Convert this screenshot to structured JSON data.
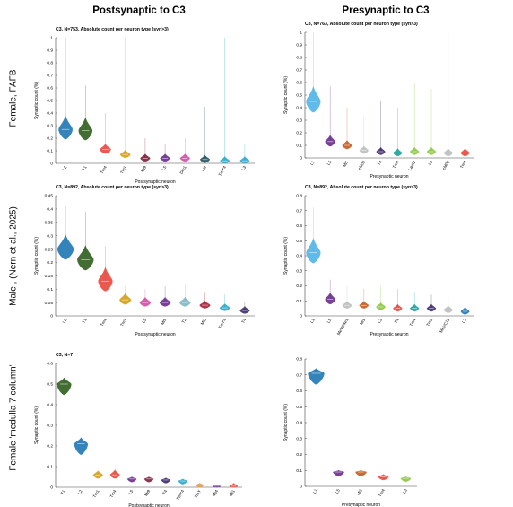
{
  "column_titles": [
    "Postsynaptic to C3",
    "Presynaptic to C3"
  ],
  "row_labels": [
    "Female, FAFB",
    "Male , (Nern et al., 2025)",
    "Female 'medulla 7 column'"
  ],
  "ylabel": "Synaptic count (%)",
  "chart_data": [
    {
      "type": "violin",
      "title": "C3, N=753, Absolute count per neuron type (syn>3)",
      "xlabel": "Postsynaptic neuron",
      "ylabel": "Synaptic count (%)",
      "ylim": [
        0,
        1
      ],
      "yticks": [
        0,
        0.1,
        0.2,
        0.3,
        0.4,
        0.5,
        0.6,
        0.7,
        0.8,
        0.9,
        1
      ],
      "categories": [
        "L2",
        "T1",
        "Tm4",
        "Tm1",
        "Mi9",
        "L5",
        "Dm1",
        "Lai",
        "TmY4",
        "L3"
      ],
      "medians": [
        0.27,
        0.26,
        0.11,
        0.07,
        0.04,
        0.04,
        0.04,
        0.03,
        0.02,
        0.02
      ],
      "max": [
        1,
        0.62,
        0.4,
        1,
        0.2,
        0.15,
        0.2,
        0.45,
        1,
        0.15
      ],
      "colors": [
        "#1f77b4",
        "#2e5e1e",
        "#e8483b",
        "#d4a017",
        "#7b1f3a",
        "#6a2d8c",
        "#d14fa3",
        "#1f4e5f",
        "#2aa7c9",
        "#2aa7c9"
      ]
    },
    {
      "type": "violin",
      "title": "C3, N=763, Absolute count per neuron type (syn>3)",
      "xlabel": "Presynaptic neuron",
      "ylabel": "Synaptic count (%)",
      "ylim": [
        0,
        1
      ],
      "yticks": [
        0,
        0.1,
        0.2,
        0.3,
        0.4,
        0.5,
        0.6,
        0.7,
        0.8,
        0.9,
        1
      ],
      "categories": [
        "L1",
        "L5",
        "Mi1",
        "cM05",
        "T4",
        "Tm4",
        "Lawf2",
        "L3",
        "cM05",
        "Tm4"
      ],
      "medians": [
        0.45,
        0.13,
        0.1,
        0.06,
        0.05,
        0.04,
        0.05,
        0.05,
        0.04,
        0.04
      ],
      "max": [
        1,
        0.57,
        0.4,
        0.33,
        0.46,
        0.4,
        0.6,
        0.55,
        1,
        0.18
      ],
      "colors": [
        "#4fb3e8",
        "#6a2d8c",
        "#c85a1e",
        "#bdbdbd",
        "#3b2a6a",
        "#1aa39a",
        "#8cc63f",
        "#8cc63f",
        "#bdbdbd",
        "#e8483b"
      ]
    },
    {
      "type": "violin",
      "title": "C3, N=892, Absolute count per neuron type (syn>3)",
      "xlabel": "Postsynaptic neuron",
      "ylabel": "Synaptic count (%)",
      "ylim": [
        0,
        0.45
      ],
      "yticks": [
        0,
        0.05,
        0.1,
        0.15,
        0.2,
        0.25,
        0.3,
        0.35,
        0.4,
        0.45
      ],
      "categories": [
        "L2",
        "T1",
        "Tm4",
        "Tm1",
        "L5",
        "Mi9",
        "T2",
        "Mi6",
        "TmY4",
        "T4"
      ],
      "medians": [
        0.25,
        0.21,
        0.13,
        0.06,
        0.05,
        0.05,
        0.05,
        0.04,
        0.03,
        0.02
      ],
      "max": [
        0.41,
        0.39,
        0.26,
        0.11,
        0.1,
        0.11,
        0.12,
        0.09,
        0.08,
        0.05
      ],
      "colors": [
        "#1f77b4",
        "#2e5e1e",
        "#e8483b",
        "#d4a017",
        "#d14fa3",
        "#6a2d8c",
        "#7fb8c4",
        "#a52033",
        "#2aa7c9",
        "#3b2a6a"
      ]
    },
    {
      "type": "violin",
      "title": "C3, N=892, Absolute count per neuron type (syn>3)",
      "xlabel": "Presynaptic neuron",
      "ylabel": "Synaptic count (%)",
      "ylim": [
        0,
        0.8
      ],
      "yticks": [
        0,
        0.1,
        0.2,
        0.3,
        0.4,
        0.5,
        0.6,
        0.7,
        0.8
      ],
      "categories": [
        "L1",
        "L5",
        "MeVC4e1",
        "Mi1",
        "L3",
        "T4",
        "Tm4",
        "Tm3",
        "MeVC11",
        "L2"
      ],
      "medians": [
        0.42,
        0.11,
        0.07,
        0.07,
        0.06,
        0.05,
        0.05,
        0.05,
        0.04,
        0.03
      ],
      "max": [
        0.72,
        0.24,
        0.2,
        0.18,
        0.2,
        0.18,
        0.16,
        0.14,
        0.13,
        0.12
      ],
      "colors": [
        "#4fb3e8",
        "#6a2d8c",
        "#bdbdbd",
        "#c85a1e",
        "#8cc63f",
        "#e8483b",
        "#1aa39a",
        "#3b2a6a",
        "#bdbdbd",
        "#1f77b4"
      ]
    },
    {
      "type": "violin",
      "title": "C3, N=7",
      "xlabel": "Postsynaptic neuron",
      "ylabel": "Synaptic count (%)",
      "ylim": [
        0,
        0.6
      ],
      "yticks": [
        0,
        0.1,
        0.2,
        0.3,
        0.4,
        0.5,
        0.6
      ],
      "categories": [
        "T1",
        "L2",
        "Tm1",
        "Tm4",
        "L5",
        "Mi9",
        "T4",
        "TmY4",
        "TmY",
        "Mi4",
        "Mi1"
      ],
      "medians": [
        0.5,
        0.21,
        0.06,
        0.06,
        0.04,
        0.04,
        0.035,
        0.03,
        0.01,
        0.005,
        0.005
      ],
      "max": [
        0.53,
        0.24,
        0.08,
        0.09,
        0.05,
        0.05,
        0.045,
        0.04,
        0.02,
        0.01,
        0.02
      ],
      "colors": [
        "#2e5e1e",
        "#1f77b4",
        "#d4a017",
        "#e8483b",
        "#6a2d8c",
        "#7b1f3a",
        "#3b2a6a",
        "#2aa7c9",
        "#e0a04a",
        "#6a2d8c",
        "#e8483b"
      ]
    },
    {
      "type": "violin",
      "title": "",
      "xlabel": "Presynaptic neuron",
      "ylabel": "Synaptic count (%)",
      "ylim": [
        0,
        0.8
      ],
      "yticks": [
        0,
        0.1,
        0.2,
        0.3,
        0.4,
        0.5,
        0.6,
        0.7,
        0.8
      ],
      "categories": [
        "L1",
        "L5",
        "Mi1",
        "Tm4",
        "L3"
      ],
      "medians": [
        0.71,
        0.09,
        0.09,
        0.06,
        0.05
      ],
      "max": [
        0.74,
        0.1,
        0.1,
        0.075,
        0.06
      ],
      "colors": [
        "#1f77b4",
        "#6a2d8c",
        "#c85a1e",
        "#e8483b",
        "#8cc63f"
      ]
    }
  ]
}
